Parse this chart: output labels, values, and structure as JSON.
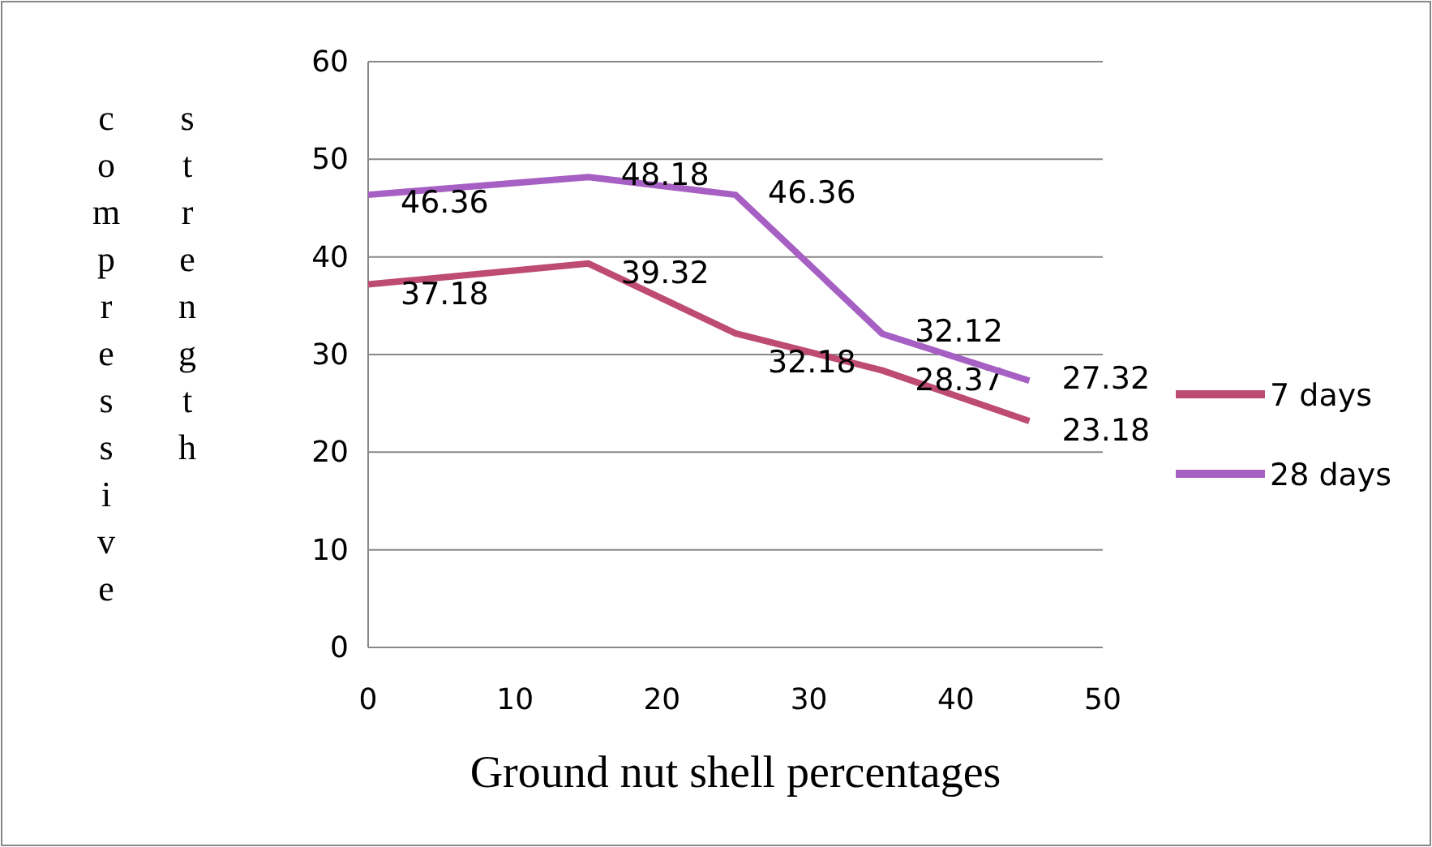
{
  "chart_data": {
    "type": "line",
    "xlabel": "Ground nut shell percentages",
    "ylabel": "compressive strength",
    "x": [
      0,
      15,
      25,
      35,
      45
    ],
    "series": [
      {
        "name": "7 days",
        "color": "#be4b72",
        "values": [
          37.18,
          39.32,
          32.18,
          28.37,
          23.18
        ]
      },
      {
        "name": "28 days",
        "color": "#a65fc2",
        "values": [
          46.36,
          48.18,
          46.36,
          32.12,
          27.32
        ]
      }
    ],
    "xlim": [
      0,
      50
    ],
    "xticks": [
      0,
      10,
      20,
      30,
      40,
      50
    ],
    "ylim": [
      0,
      60
    ],
    "yticks": [
      0,
      10,
      20,
      30,
      40,
      50,
      60
    ],
    "grid": "y",
    "legend": "right",
    "data_labels": true,
    "marker": "none",
    "line_style": "solid"
  }
}
